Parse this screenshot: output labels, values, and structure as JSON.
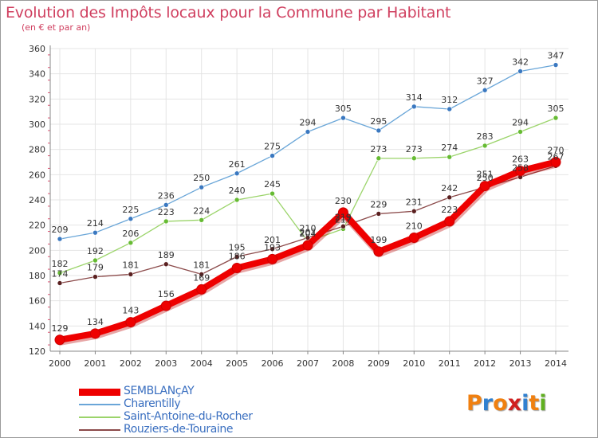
{
  "title": "Evolution des Impôts locaux pour la Commune par Habitant",
  "subtitle": "(en € et par an)",
  "logo": {
    "text": "Proxiti",
    "colors": [
      "#f08010",
      "#3080d0",
      "#f08010",
      "#d02020",
      "#3080d0",
      "#f08010",
      "#60b020"
    ]
  },
  "colors": {
    "title": "#d04060",
    "grid": "#e4e4e4",
    "axis": "#888888",
    "tick_text": "#333333",
    "value_text": "#333333",
    "minor_tick": "#e05070"
  },
  "chart_data": {
    "type": "line",
    "x": [
      2000,
      2001,
      2002,
      2003,
      2004,
      2005,
      2006,
      2007,
      2008,
      2009,
      2010,
      2011,
      2012,
      2013,
      2014
    ],
    "ylim": [
      120,
      360
    ],
    "yticks": [
      120,
      140,
      160,
      180,
      200,
      220,
      240,
      260,
      280,
      300,
      320,
      340,
      360
    ],
    "xlabel": "",
    "ylabel": "",
    "grid": true,
    "series": [
      {
        "name": "SEMBLANçAY",
        "color": "#ee0000",
        "point_color": "#ee0000",
        "emphasis": true,
        "values": [
          129,
          134,
          143,
          156,
          169,
          186,
          193,
          204,
          230,
          199,
          210,
          223,
          251,
          263,
          270
        ]
      },
      {
        "name": "Charentilly",
        "color": "#6aa6d8",
        "point_color": "#3a78c0",
        "emphasis": false,
        "values": [
          209,
          214,
          225,
          236,
          250,
          261,
          275,
          294,
          305,
          295,
          314,
          312,
          327,
          342,
          347
        ]
      },
      {
        "name": "Saint-Antoine-du-Rocher",
        "color": "#9bd46a",
        "point_color": "#66bb33",
        "emphasis": false,
        "values": [
          182,
          192,
          206,
          223,
          224,
          240,
          245,
          207,
          217,
          273,
          273,
          274,
          283,
          294,
          305
        ]
      },
      {
        "name": "Rouziers-de-Touraine",
        "color": "#8b4a4a",
        "point_color": "#5a2020",
        "emphasis": false,
        "values": [
          174,
          179,
          181,
          189,
          181,
          195,
          201,
          210,
          219,
          229,
          231,
          242,
          250,
          258,
          267
        ]
      }
    ]
  }
}
